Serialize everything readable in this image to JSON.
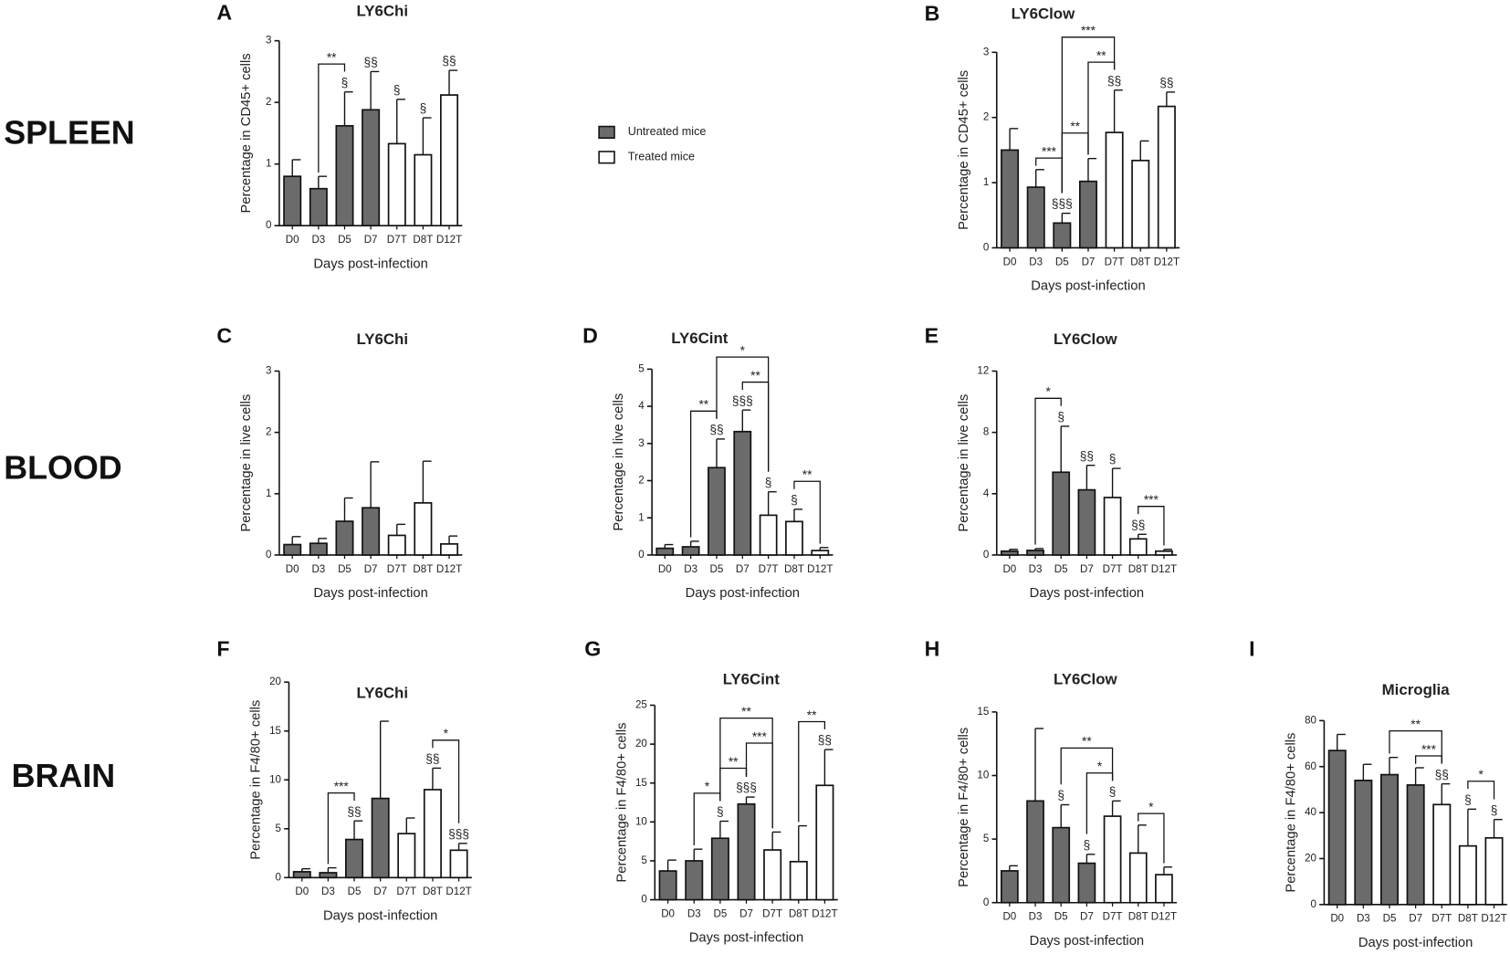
{
  "row_labels": [
    "SPLEEN",
    "BLOOD",
    "BRAIN"
  ],
  "legend": [
    {
      "name": "Untreated mice",
      "color": "#6b6b6b"
    },
    {
      "name": "Treated mice",
      "color": "#ffffff"
    }
  ],
  "chart_data": [
    {
      "type": "bar",
      "panel": "A",
      "title": "LY6Chi",
      "ylabel": "Percentage in CD45+ cells",
      "xlabel": "Days post-infection",
      "categories": [
        "D0",
        "D3",
        "D5",
        "D7",
        "D7T",
        "D8T",
        "D12T"
      ],
      "values": [
        0.8,
        0.6,
        1.62,
        1.88,
        1.33,
        1.15,
        2.12
      ],
      "errors": [
        0.27,
        0.2,
        0.55,
        0.62,
        0.72,
        0.6,
        0.4
      ],
      "colors": [
        "#6b6b6b",
        "#6b6b6b",
        "#6b6b6b",
        "#6b6b6b",
        "#ffffff",
        "#ffffff",
        "#ffffff"
      ],
      "marks": [
        null,
        null,
        "§",
        "§§",
        "§",
        "§",
        "§§"
      ],
      "brackets": [
        {
          "from": "D3",
          "to": "D5",
          "label": "**"
        }
      ],
      "ylim": [
        0,
        3
      ],
      "yticks": [
        0,
        1,
        2,
        3
      ]
    },
    {
      "type": "bar",
      "panel": "B",
      "title": "LY6Clow",
      "ylabel": "Percentage in CD45+ cells",
      "xlabel": "Days post-infection",
      "categories": [
        "D0",
        "D3",
        "D5",
        "D7",
        "D7T",
        "D8T",
        "D12T"
      ],
      "values": [
        1.5,
        0.93,
        0.38,
        1.02,
        1.77,
        1.34,
        2.17
      ],
      "errors": [
        0.33,
        0.27,
        0.15,
        0.35,
        0.65,
        0.3,
        0.22
      ],
      "colors": [
        "#6b6b6b",
        "#6b6b6b",
        "#6b6b6b",
        "#6b6b6b",
        "#ffffff",
        "#ffffff",
        "#ffffff"
      ],
      "marks": [
        null,
        null,
        "§§§",
        null,
        "§§",
        null,
        "§§"
      ],
      "brackets": [
        {
          "from": "D3",
          "to": "D5",
          "label": "***"
        },
        {
          "from": "D5",
          "to": "D7",
          "label": "**"
        },
        {
          "from": "D7",
          "to": "D7T",
          "label": "**"
        },
        {
          "from": "D5",
          "to": "D7T",
          "label": "***"
        }
      ],
      "ylim": [
        0,
        3
      ],
      "yticks": [
        0,
        1,
        2,
        3
      ]
    },
    {
      "type": "bar",
      "panel": "C",
      "title": "LY6Chi",
      "ylabel": "Percentage in live cells",
      "xlabel": "Days post-infection",
      "categories": [
        "D0",
        "D3",
        "D5",
        "D7",
        "D7T",
        "D8T",
        "D12T"
      ],
      "values": [
        0.17,
        0.19,
        0.55,
        0.77,
        0.32,
        0.85,
        0.18
      ],
      "errors": [
        0.13,
        0.08,
        0.38,
        0.75,
        0.18,
        0.68,
        0.13
      ],
      "colors": [
        "#6b6b6b",
        "#6b6b6b",
        "#6b6b6b",
        "#6b6b6b",
        "#ffffff",
        "#ffffff",
        "#ffffff"
      ],
      "marks": [
        null,
        null,
        null,
        null,
        null,
        null,
        null
      ],
      "brackets": [],
      "ylim": [
        0,
        3
      ],
      "yticks": [
        0,
        1,
        2,
        3
      ]
    },
    {
      "type": "bar",
      "panel": "D",
      "title": "LY6Cint",
      "ylabel": "Percentage in live cells",
      "xlabel": "Days post-infection",
      "categories": [
        "D0",
        "D3",
        "D5",
        "D7",
        "D7T",
        "D8T",
        "D12T"
      ],
      "values": [
        0.18,
        0.22,
        2.35,
        3.32,
        1.07,
        0.9,
        0.12
      ],
      "errors": [
        0.1,
        0.15,
        0.77,
        0.58,
        0.63,
        0.33,
        0.08
      ],
      "colors": [
        "#6b6b6b",
        "#6b6b6b",
        "#6b6b6b",
        "#6b6b6b",
        "#ffffff",
        "#ffffff",
        "#ffffff"
      ],
      "marks": [
        null,
        null,
        "§§",
        "§§§",
        "§",
        "§",
        null
      ],
      "brackets": [
        {
          "from": "D3",
          "to": "D5",
          "label": "**"
        },
        {
          "from": "D7",
          "to": "D7T",
          "label": "**"
        },
        {
          "from": "D5",
          "to": "D7T",
          "label": "*"
        },
        {
          "from": "D8T",
          "to": "D12T",
          "label": "**"
        }
      ],
      "ylim": [
        0,
        5
      ],
      "yticks": [
        0,
        1,
        2,
        3,
        4,
        5
      ]
    },
    {
      "type": "bar",
      "panel": "E",
      "title": "LY6Clow",
      "ylabel": "Percentage in live cells",
      "xlabel": "Days post-infection",
      "categories": [
        "D0",
        "D3",
        "D5",
        "D7",
        "D7T",
        "D8T",
        "D12T"
      ],
      "values": [
        0.25,
        0.3,
        5.4,
        4.25,
        3.75,
        1.05,
        0.25
      ],
      "errors": [
        0.12,
        0.12,
        3.0,
        1.6,
        1.9,
        0.3,
        0.12
      ],
      "colors": [
        "#6b6b6b",
        "#6b6b6b",
        "#6b6b6b",
        "#6b6b6b",
        "#ffffff",
        "#ffffff",
        "#ffffff"
      ],
      "marks": [
        null,
        null,
        "§",
        "§§",
        "§",
        "§§",
        null
      ],
      "brackets": [
        {
          "from": "D3",
          "to": "D5",
          "label": "*"
        },
        {
          "from": "D8T",
          "to": "D12T",
          "label": "***"
        }
      ],
      "ylim": [
        0,
        12
      ],
      "yticks": [
        0,
        4,
        8,
        12
      ]
    },
    {
      "type": "bar",
      "panel": "F",
      "title": "LY6Chi",
      "ylabel": "Percentage in F4/80+ cells",
      "xlabel": "Days post-infection",
      "categories": [
        "D0",
        "D3",
        "D5",
        "D7",
        "D7T",
        "D8T",
        "D12T"
      ],
      "values": [
        0.6,
        0.5,
        3.9,
        8.1,
        4.5,
        9.0,
        2.8
      ],
      "errors": [
        0.3,
        0.5,
        1.9,
        7.9,
        1.6,
        2.2,
        0.7
      ],
      "colors": [
        "#6b6b6b",
        "#6b6b6b",
        "#6b6b6b",
        "#6b6b6b",
        "#ffffff",
        "#ffffff",
        "#ffffff"
      ],
      "marks": [
        null,
        null,
        "§§",
        null,
        null,
        "§§",
        "§§§"
      ],
      "brackets": [
        {
          "from": "D3",
          "to": "D5",
          "label": "***"
        },
        {
          "from": "D8T",
          "to": "D12T",
          "label": "*"
        }
      ],
      "ylim": [
        0,
        20
      ],
      "yticks": [
        0,
        5,
        10,
        15,
        20
      ]
    },
    {
      "type": "bar",
      "panel": "G",
      "title": "LY6Cint",
      "ylabel": "Percentage in F4/80+ cells",
      "xlabel": "Days post-infection",
      "categories": [
        "D0",
        "D3",
        "D5",
        "D7",
        "D7T",
        "D8T",
        "D12T"
      ],
      "values": [
        3.7,
        5.0,
        7.9,
        12.3,
        6.4,
        4.9,
        14.7
      ],
      "errors": [
        1.4,
        1.5,
        2.2,
        0.9,
        2.3,
        4.6,
        4.6
      ],
      "colors": [
        "#6b6b6b",
        "#6b6b6b",
        "#6b6b6b",
        "#6b6b6b",
        "#ffffff",
        "#ffffff",
        "#ffffff"
      ],
      "marks": [
        null,
        null,
        "§",
        "§§§",
        null,
        null,
        "§§"
      ],
      "brackets": [
        {
          "from": "D3",
          "to": "D5",
          "label": "*"
        },
        {
          "from": "D5",
          "to": "D7",
          "label": "**"
        },
        {
          "from": "D7",
          "to": "D7T",
          "label": "***"
        },
        {
          "from": "D5",
          "to": "D7T",
          "label": "**"
        },
        {
          "from": "D8T",
          "to": "D12T",
          "label": "**"
        }
      ],
      "ylim": [
        0,
        25
      ],
      "yticks": [
        0,
        5,
        10,
        15,
        20,
        25
      ]
    },
    {
      "type": "bar",
      "panel": "H",
      "title": "LY6Clow",
      "ylabel": "Percentage in F4/80+ cells",
      "xlabel": "Days post-infection",
      "categories": [
        "D0",
        "D3",
        "D5",
        "D7",
        "D7T",
        "D8T",
        "D12T"
      ],
      "values": [
        2.5,
        8.0,
        5.9,
        3.1,
        6.8,
        3.9,
        2.2
      ],
      "errors": [
        0.4,
        5.7,
        1.8,
        0.7,
        1.2,
        2.2,
        0.6
      ],
      "colors": [
        "#6b6b6b",
        "#6b6b6b",
        "#6b6b6b",
        "#6b6b6b",
        "#ffffff",
        "#ffffff",
        "#ffffff"
      ],
      "marks": [
        null,
        null,
        "§",
        "§",
        "§",
        null,
        null
      ],
      "brackets": [
        {
          "from": "D7",
          "to": "D7T",
          "label": "*"
        },
        {
          "from": "D5",
          "to": "D7T",
          "label": "**"
        },
        {
          "from": "D8T",
          "to": "D12T",
          "label": "*"
        }
      ],
      "ylim": [
        0,
        15
      ],
      "yticks": [
        0,
        5,
        10,
        15
      ]
    },
    {
      "type": "bar",
      "panel": "I",
      "title": "Microglia",
      "ylabel": "Percentage in F4/80+ cells",
      "xlabel": "Days post-infection",
      "categories": [
        "D0",
        "D3",
        "D5",
        "D7",
        "D7T",
        "D8T",
        "D12T"
      ],
      "values": [
        67,
        54,
        56.5,
        52,
        43.5,
        25.5,
        29
      ],
      "errors": [
        7,
        7,
        7.5,
        7.5,
        9,
        16,
        8
      ],
      "colors": [
        "#6b6b6b",
        "#6b6b6b",
        "#6b6b6b",
        "#6b6b6b",
        "#ffffff",
        "#ffffff",
        "#ffffff"
      ],
      "marks": [
        null,
        null,
        null,
        null,
        "§§",
        "§",
        "§"
      ],
      "brackets": [
        {
          "from": "D7",
          "to": "D7T",
          "label": "***"
        },
        {
          "from": "D5",
          "to": "D7T",
          "label": "**"
        },
        {
          "from": "D8T",
          "to": "D12T",
          "label": "*"
        }
      ],
      "ylim": [
        0,
        80
      ],
      "yticks": [
        0,
        20,
        40,
        60,
        80
      ]
    }
  ]
}
